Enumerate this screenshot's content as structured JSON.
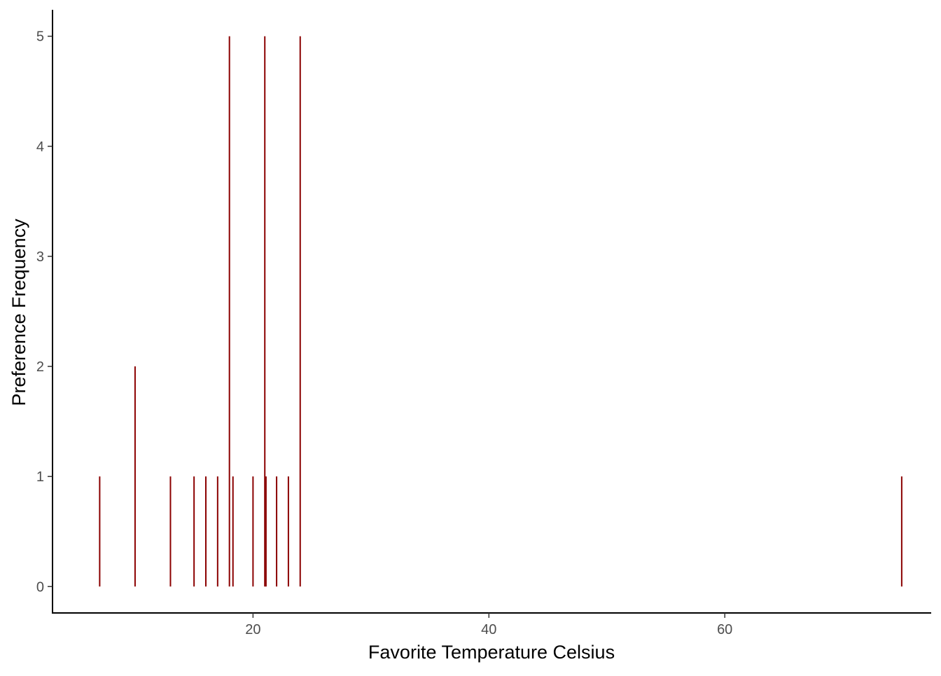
{
  "chart_data": {
    "type": "bar",
    "xlabel": "Favorite Temperature Celsius",
    "ylabel": "Preference Frequency",
    "xlim": [
      3.0,
      77.5
    ],
    "ylim": [
      -0.24,
      5.24
    ],
    "x_ticks": [
      20,
      40,
      60
    ],
    "y_ticks": [
      0,
      1,
      2,
      3,
      4,
      5
    ],
    "grid": false,
    "bar_color": "#8b0000",
    "series": [
      {
        "x": [
          7,
          10,
          13,
          15,
          16,
          17,
          18,
          18.3,
          20,
          21,
          21.1,
          22,
          23,
          24,
          75
        ],
        "values": [
          1,
          2,
          1,
          1,
          1,
          1,
          5,
          1,
          1,
          5,
          1,
          1,
          1,
          5,
          1
        ]
      }
    ]
  }
}
